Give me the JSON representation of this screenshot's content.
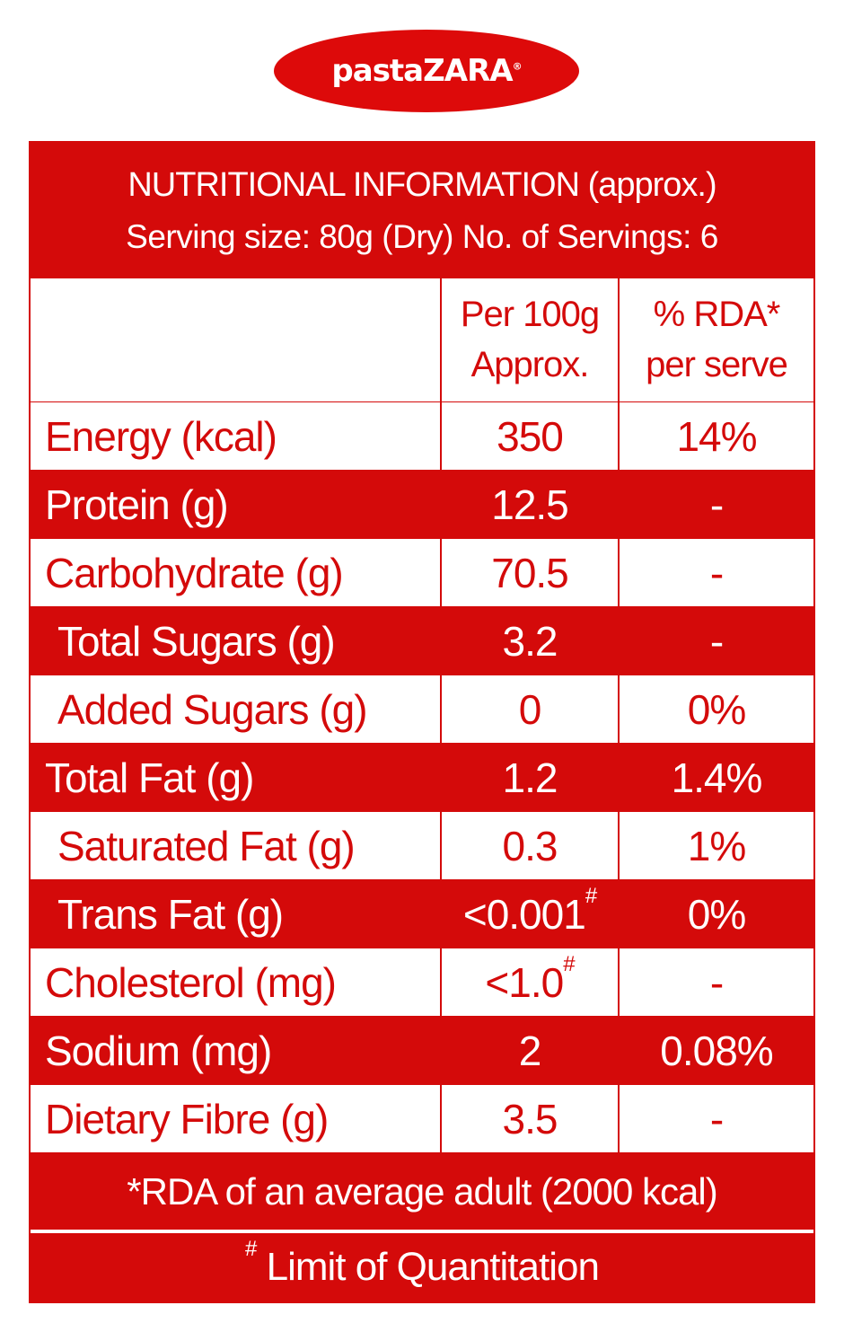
{
  "brand": {
    "logo_text": "pastaZARA",
    "mark": "®",
    "color": "#d40a0a"
  },
  "header": {
    "title": "NUTRITIONAL INFORMATION (approx.)",
    "serving": "Serving size: 80g (Dry) No. of Servings: 6"
  },
  "columns": {
    "per100_line1": "Per 100g",
    "per100_line2": "Approx.",
    "rda_line1": "% RDA*",
    "rda_line2": "per serve"
  },
  "rows": [
    {
      "label": "Energy (kcal)",
      "value": "350",
      "rda": "14%"
    },
    {
      "label": "Protein (g)",
      "value": "12.5",
      "rda": "-"
    },
    {
      "label": "Carbohydrate (g)",
      "value": "70.5",
      "rda": "-"
    },
    {
      "label": "Total Sugars (g)",
      "value": "3.2",
      "rda": "-",
      "indent": true
    },
    {
      "label": "Added Sugars (g)",
      "value": "0",
      "rda": "0%",
      "indent": true
    },
    {
      "label": "Total Fat (g)",
      "value": "1.2",
      "rda": "1.4%"
    },
    {
      "label": "Saturated Fat (g)",
      "value": "0.3",
      "rda": "1%",
      "indent": true
    },
    {
      "label": "Trans Fat (g)",
      "value": "<0.001",
      "note": "#",
      "rda": "0%",
      "indent": true
    },
    {
      "label": "Cholesterol (mg)",
      "value": "<1.0",
      "note": "#",
      "rda": "-"
    },
    {
      "label": "Sodium (mg)",
      "value": "2",
      "rda": "0.08%"
    },
    {
      "label": "Dietary Fibre (g)",
      "value": "3.5",
      "rda": "-"
    }
  ],
  "footer": {
    "rda_note": "*RDA of  an average adult (2000 kcal)",
    "hash": "#",
    "limit_note": "Limit of Quantitation"
  }
}
